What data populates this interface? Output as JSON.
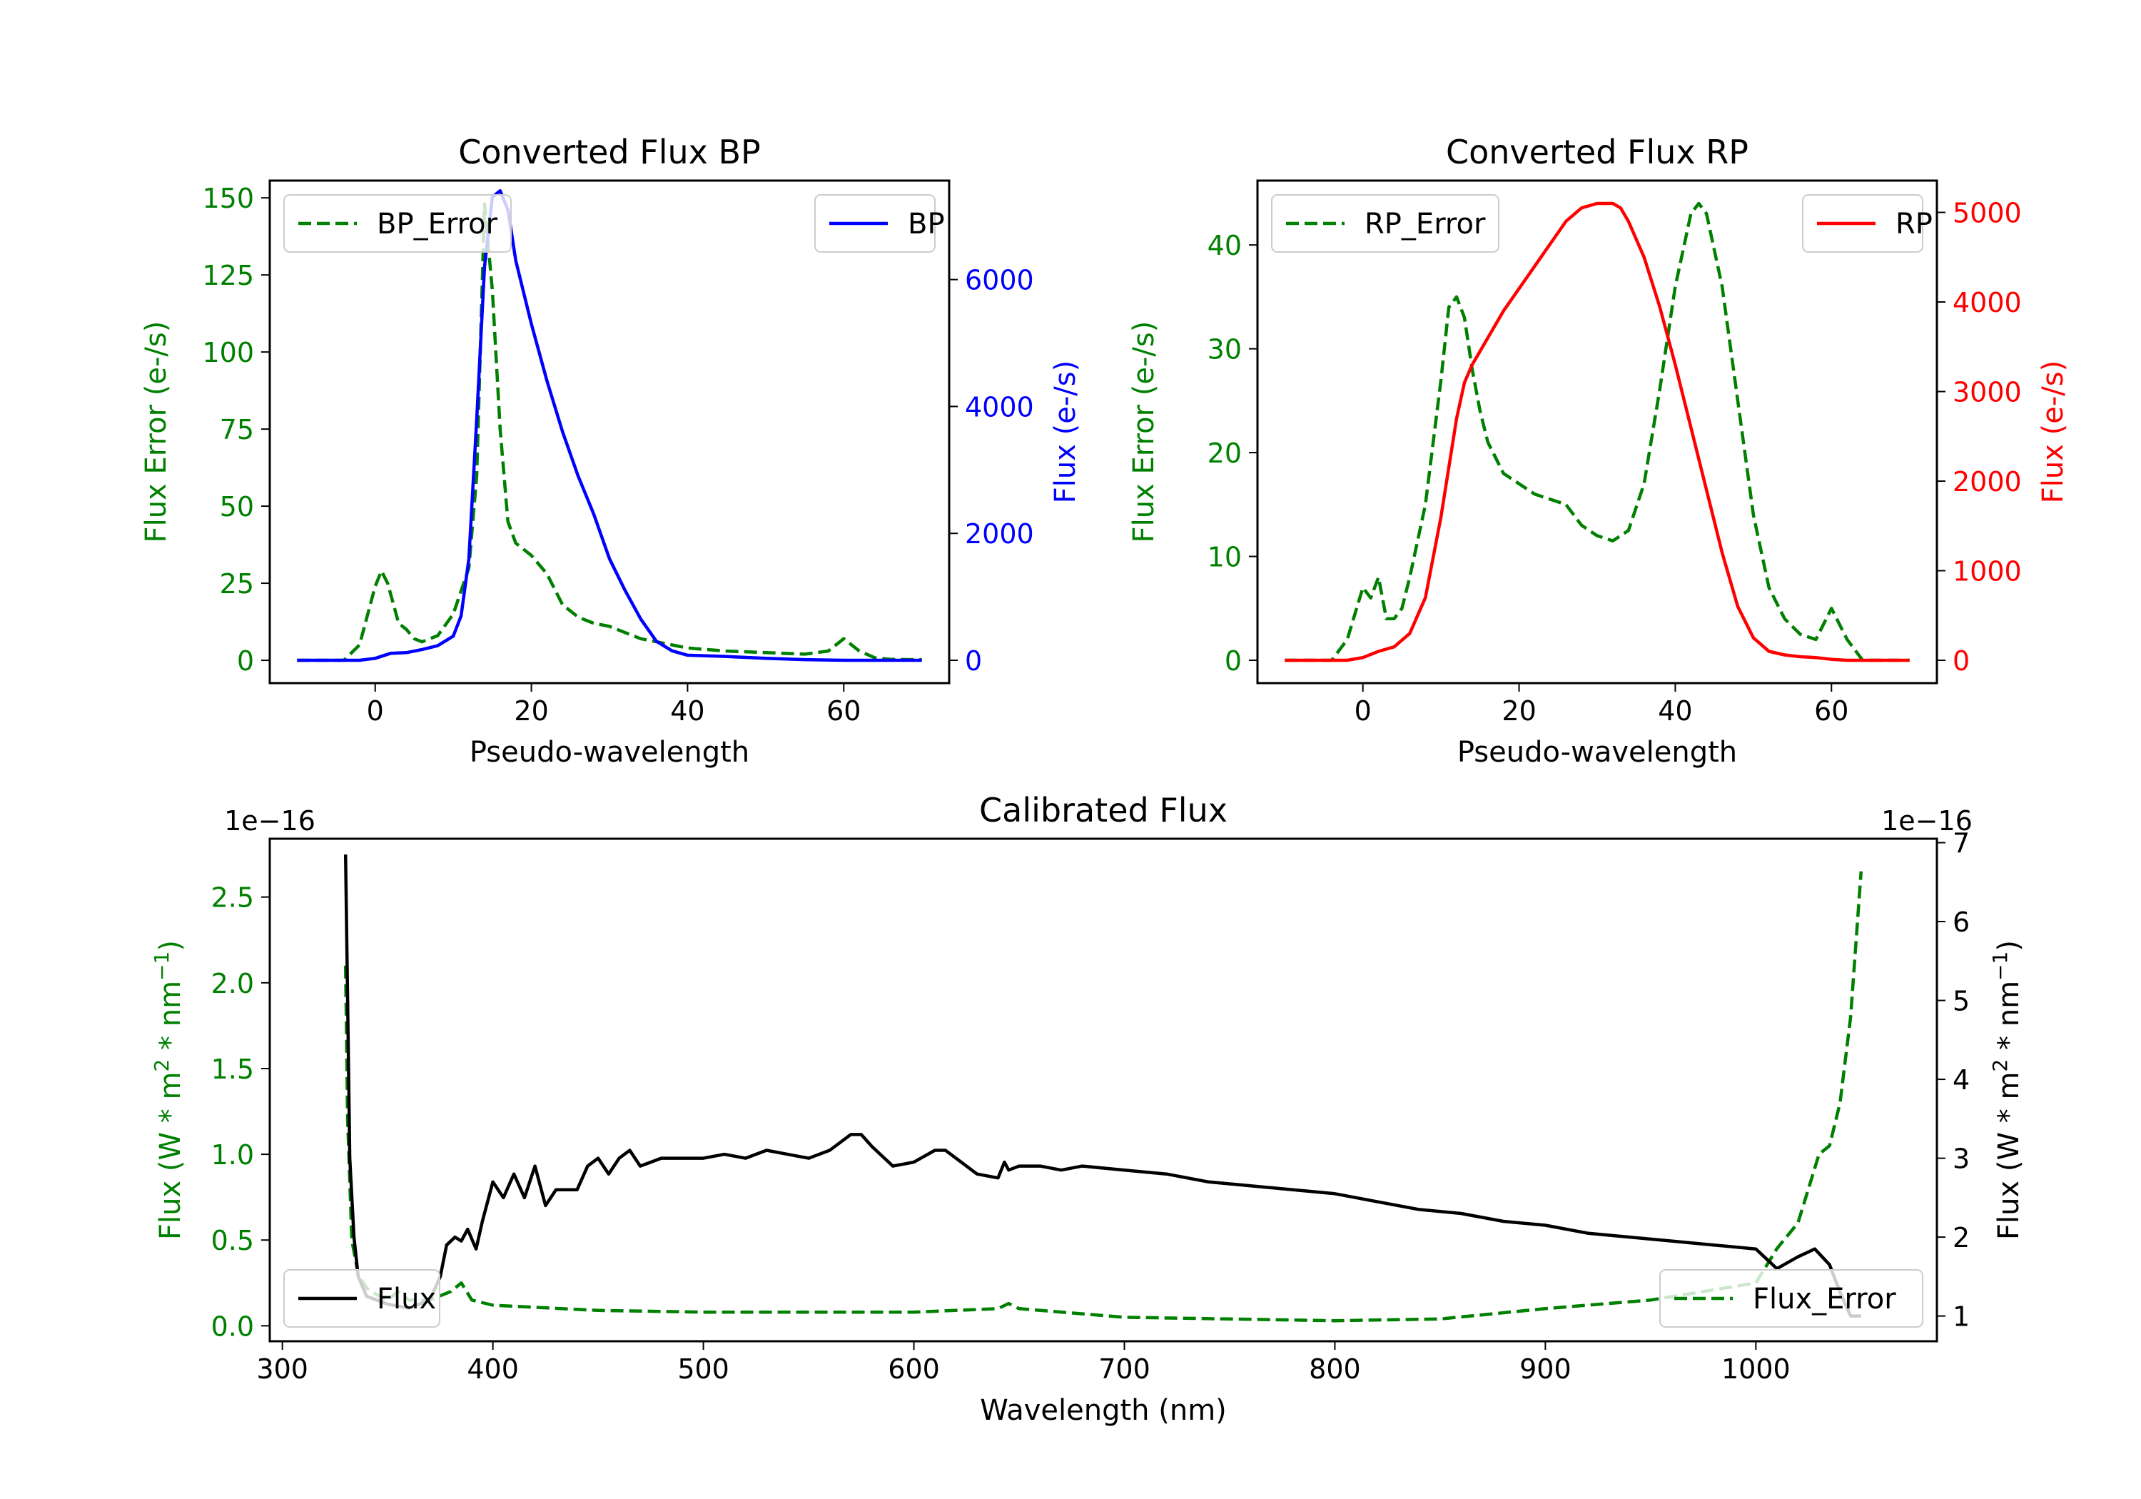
{
  "colors": {
    "bp": "#0000ff",
    "rp": "#ff0000",
    "error": "#008000",
    "flux": "#000000"
  },
  "chart_data": [
    {
      "id": "bp",
      "type": "line",
      "title": "Converted Flux BP",
      "xlabel": "Pseudo-wavelength",
      "ylabel_left": "Flux Error (e-/s)",
      "ylabel_right": "Flux (e-/s)",
      "xlim": [
        -13.5,
        73.5
      ],
      "ylim_left": [
        -7.4,
        155.6
      ],
      "ylim_right": [
        -360,
        7560
      ],
      "xticks": [
        0,
        20,
        40,
        60
      ],
      "yticks_left": [
        0,
        25,
        50,
        75,
        100,
        125,
        150
      ],
      "yticks_right": [
        0,
        2000,
        4000,
        6000
      ],
      "series": [
        {
          "name": "BP_Error",
          "axis": "left",
          "style": "dashed",
          "color": "#008000",
          "x": [
            -10,
            -4,
            -2,
            0,
            0.8,
            1.6,
            3,
            4,
            5,
            6,
            8,
            10,
            12,
            13,
            14,
            15,
            16,
            17,
            18,
            20,
            22,
            24,
            26,
            28,
            30,
            32,
            34,
            36,
            40,
            45,
            50,
            55,
            58,
            60,
            62,
            64,
            66,
            70
          ],
          "y": [
            0,
            0,
            5,
            24,
            29,
            25,
            12,
            10,
            7,
            6,
            8,
            15,
            30,
            60,
            148,
            120,
            75,
            45,
            38,
            34,
            28,
            18,
            14,
            12,
            11,
            9,
            7,
            6,
            4,
            3,
            2.5,
            2,
            3,
            7,
            3,
            0.8,
            0.3,
            0.2
          ]
        },
        {
          "name": "BP",
          "axis": "right",
          "style": "solid",
          "color": "#0000ff",
          "x": [
            -10,
            -2,
            0,
            2,
            4,
            6,
            8,
            10,
            11,
            12,
            13,
            14,
            15,
            16,
            17,
            18,
            19,
            20,
            22,
            24,
            26,
            28,
            30,
            32,
            34,
            36,
            38,
            40,
            45,
            50,
            55,
            60,
            65,
            70
          ],
          "y": [
            0,
            0,
            30,
            110,
            120,
            170,
            230,
            380,
            700,
            1600,
            3800,
            6200,
            7300,
            7400,
            7100,
            6300,
            5800,
            5300,
            4400,
            3600,
            2900,
            2300,
            1600,
            1100,
            650,
            300,
            150,
            80,
            60,
            30,
            10,
            0,
            0,
            0
          ]
        }
      ],
      "legends": [
        {
          "entry": "BP_Error",
          "placement": "upper left"
        },
        {
          "entry": "BP",
          "placement": "upper right"
        }
      ]
    },
    {
      "id": "rp",
      "type": "line",
      "title": "Converted Flux RP",
      "xlabel": "Pseudo-wavelength",
      "ylabel_left": "Flux Error (e-/s)",
      "ylabel_right": "Flux (e-/s)",
      "xlim": [
        -13.5,
        73.5
      ],
      "ylim_left": [
        -2.2,
        46.2
      ],
      "ylim_right": [
        -255,
        5355
      ],
      "xticks": [
        0,
        20,
        40,
        60
      ],
      "yticks_left": [
        0,
        10,
        20,
        30,
        40
      ],
      "yticks_right": [
        0,
        1000,
        2000,
        3000,
        4000,
        5000
      ],
      "series": [
        {
          "name": "RP_Error",
          "axis": "left",
          "style": "dashed",
          "color": "#008000",
          "x": [
            -10,
            -4,
            -2,
            0,
            1,
            2,
            3,
            4,
            5,
            6,
            8,
            10,
            11,
            12,
            13,
            14,
            15,
            16,
            18,
            20,
            22,
            24,
            26,
            28,
            30,
            32,
            34,
            36,
            38,
            40,
            42,
            43,
            44,
            46,
            48,
            50,
            52,
            54,
            56,
            58,
            60,
            62,
            64,
            66,
            70
          ],
          "y": [
            0,
            0,
            2,
            7,
            6,
            8,
            4,
            4,
            5,
            8,
            15,
            27,
            34,
            35,
            33,
            28,
            24,
            21,
            18,
            17,
            16,
            15.5,
            15,
            13,
            12,
            11.5,
            12.5,
            17,
            26,
            36,
            43,
            44,
            43,
            36,
            25,
            14,
            7,
            4,
            2.5,
            2,
            5,
            2,
            0,
            0,
            0
          ]
        },
        {
          "name": "RP",
          "axis": "right",
          "style": "solid",
          "color": "#ff0000",
          "x": [
            -10,
            -2,
            0,
            2,
            4,
            6,
            8,
            10,
            12,
            13,
            14,
            16,
            18,
            20,
            22,
            24,
            26,
            28,
            30,
            32,
            33,
            34,
            36,
            38,
            40,
            42,
            44,
            46,
            48,
            50,
            52,
            54,
            56,
            58,
            60,
            62,
            65,
            70
          ],
          "y": [
            0,
            0,
            30,
            100,
            150,
            300,
            700,
            1600,
            2700,
            3100,
            3300,
            3600,
            3900,
            4150,
            4400,
            4650,
            4900,
            5050,
            5100,
            5100,
            5050,
            4900,
            4500,
            3950,
            3300,
            2600,
            1900,
            1200,
            600,
            250,
            100,
            60,
            40,
            30,
            10,
            0,
            0,
            0
          ]
        }
      ],
      "legends": [
        {
          "entry": "RP_Error",
          "placement": "upper left"
        },
        {
          "entry": "RP",
          "placement": "upper right"
        }
      ]
    },
    {
      "id": "calibrated",
      "type": "line",
      "title": "Calibrated Flux",
      "xlabel": "Wavelength (nm)",
      "ylabel_left": "Flux (W * m² * nm⁻¹)",
      "ylabel_right": "Flux (W * m² * nm⁻¹)",
      "offset_left": "1e−16",
      "offset_right": "1e−16",
      "xlim": [
        294,
        1086
      ],
      "ylim_left": [
        -0.09,
        2.84
      ],
      "ylim_right": [
        0.68,
        7.05
      ],
      "xticks": [
        300,
        400,
        500,
        600,
        700,
        800,
        900,
        1000
      ],
      "yticks_left": [
        0.0,
        0.5,
        1.0,
        1.5,
        2.0,
        2.5
      ],
      "yticks_right": [
        1,
        2,
        3,
        4,
        5,
        6,
        7
      ],
      "series": [
        {
          "name": "Flux_Error",
          "axis": "left",
          "style": "dashed",
          "color": "#008000",
          "x": [
            330,
            331,
            333,
            336,
            340,
            345,
            350,
            355,
            360,
            370,
            380,
            385,
            390,
            400,
            450,
            500,
            550,
            600,
            640,
            645,
            650,
            700,
            750,
            800,
            850,
            900,
            950,
            1000,
            1005,
            1010,
            1020,
            1025,
            1030,
            1035,
            1040,
            1045,
            1050
          ],
          "y": [
            2.1,
            1.2,
            0.5,
            0.3,
            0.22,
            0.18,
            0.15,
            0.2,
            0.15,
            0.15,
            0.2,
            0.25,
            0.15,
            0.12,
            0.09,
            0.08,
            0.08,
            0.08,
            0.1,
            0.13,
            0.1,
            0.05,
            0.04,
            0.03,
            0.04,
            0.1,
            0.15,
            0.25,
            0.35,
            0.45,
            0.6,
            0.8,
            1.0,
            1.05,
            1.3,
            1.8,
            2.65
          ]
        },
        {
          "name": "Flux",
          "axis": "right",
          "style": "solid",
          "color": "#000000",
          "x": [
            330,
            331,
            332,
            334,
            336,
            340,
            345,
            350,
            360,
            370,
            375,
            378,
            382,
            385,
            388,
            392,
            395,
            400,
            405,
            410,
            415,
            420,
            425,
            430,
            440,
            445,
            450,
            455,
            460,
            465,
            470,
            480,
            490,
            500,
            510,
            520,
            530,
            540,
            550,
            560,
            570,
            575,
            580,
            590,
            600,
            610,
            615,
            620,
            630,
            640,
            643,
            645,
            650,
            660,
            670,
            680,
            700,
            720,
            740,
            760,
            780,
            800,
            820,
            840,
            860,
            880,
            900,
            920,
            940,
            960,
            980,
            1000,
            1010,
            1020,
            1028,
            1035,
            1040,
            1045,
            1050
          ],
          "y": [
            6.85,
            5,
            3,
            2,
            1.5,
            1.25,
            1.2,
            1.15,
            1.1,
            1.2,
            1.5,
            1.9,
            2.0,
            1.95,
            2.1,
            1.85,
            2.2,
            2.7,
            2.5,
            2.8,
            2.5,
            2.9,
            2.4,
            2.6,
            2.6,
            2.9,
            3.0,
            2.8,
            3.0,
            3.1,
            2.9,
            3.0,
            3.0,
            3.0,
            3.05,
            3.0,
            3.1,
            3.05,
            3.0,
            3.1,
            3.3,
            3.3,
            3.15,
            2.9,
            2.95,
            3.1,
            3.1,
            3.0,
            2.8,
            2.75,
            2.95,
            2.85,
            2.9,
            2.9,
            2.85,
            2.9,
            2.85,
            2.8,
            2.7,
            2.65,
            2.6,
            2.55,
            2.45,
            2.35,
            2.3,
            2.2,
            2.15,
            2.05,
            2.0,
            1.95,
            1.9,
            1.85,
            1.6,
            1.75,
            1.85,
            1.65,
            1.3,
            1.0,
            1.0
          ]
        }
      ],
      "legends": [
        {
          "entry": "Flux",
          "placement": "lower left"
        },
        {
          "entry": "Flux_Error",
          "placement": "lower right"
        }
      ]
    }
  ]
}
